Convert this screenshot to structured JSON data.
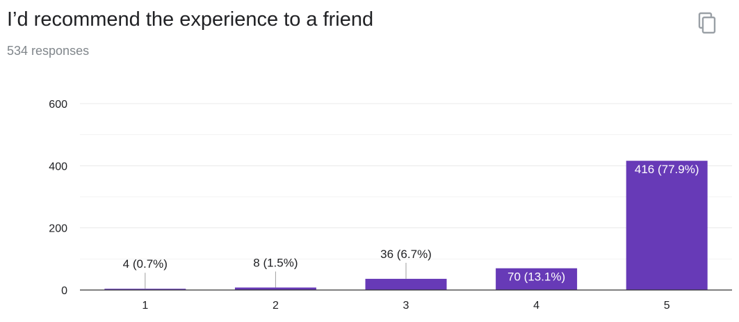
{
  "question": {
    "title": "I’d recommend the experience to a friend",
    "responses": "534 responses",
    "copy_icon": "copy-icon"
  },
  "colors": {
    "bar": "#673ab7",
    "grid": "#e8e8e8",
    "axis": "#333333"
  },
  "chart_data": {
    "type": "bar",
    "categories": [
      "1",
      "2",
      "3",
      "4",
      "5"
    ],
    "values": [
      4,
      8,
      36,
      70,
      416
    ],
    "labels": [
      "4 (0.7%)",
      "8 (1.5%)",
      "36 (6.7%)",
      "70 (13.1%)",
      "416 (77.9%)"
    ],
    "yticks": [
      "0",
      "200",
      "400",
      "600"
    ],
    "ylim": [
      0,
      600
    ],
    "grid": true,
    "xlabel": "",
    "ylabel": ""
  }
}
